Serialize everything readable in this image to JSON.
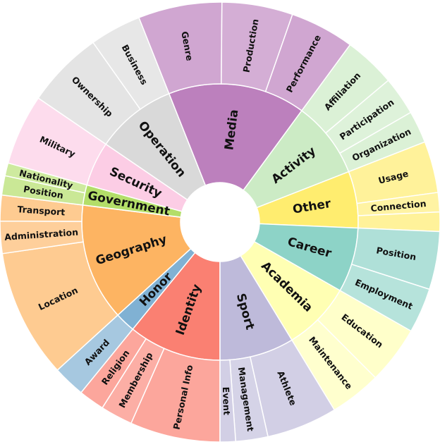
{
  "chart_data": {
    "type": "sunburst",
    "categories": [
      {
        "name": "Identity",
        "color": "#fa8072",
        "children": [
          {
            "name": "Personal Info",
            "value": 7
          },
          {
            "name": "Membership",
            "value": 2.5
          },
          {
            "name": "Religion",
            "value": 2
          }
        ]
      },
      {
        "name": "Honor",
        "color": "#80b1d3",
        "children": [
          {
            "name": "Award",
            "value": 2.5
          }
        ]
      },
      {
        "name": "Geography",
        "color": "#fdb462",
        "children": [
          {
            "name": "Location",
            "value": 10
          },
          {
            "name": "Administration",
            "value": 2.5
          },
          {
            "name": "Transport",
            "value": 2
          }
        ]
      },
      {
        "name": "Government",
        "color": "#b3de69",
        "children": [
          {
            "name": "Position",
            "value": 1.5
          },
          {
            "name": "Nationality",
            "value": 1
          }
        ]
      },
      {
        "name": "Security",
        "color": "#fccde5",
        "children": [
          {
            "name": "Military",
            "value": 5.5
          }
        ]
      },
      {
        "name": "Operation",
        "color": "#d9d9d9",
        "children": [
          {
            "name": "Ownership",
            "value": 6
          },
          {
            "name": "Business",
            "value": 4
          }
        ]
      },
      {
        "name": "Media",
        "color": "#bc80bd",
        "children": [
          {
            "name": "Genre",
            "value": 6.5
          },
          {
            "name": "Production",
            "value": 5.5
          },
          {
            "name": "Performance",
            "value": 5
          }
        ]
      },
      {
        "name": "Activity",
        "color": "#ccebc5",
        "children": [
          {
            "name": "Affiliation",
            "value": 4
          },
          {
            "name": "Participation",
            "value": 3
          },
          {
            "name": "Organization",
            "value": 2.5
          }
        ]
      },
      {
        "name": "Other",
        "color": "#ffed6f",
        "children": [
          {
            "name": "Usage",
            "value": 4
          },
          {
            "name": "Connection",
            "value": 1.5
          },
          {
            "name": "",
            "value": 1.5
          }
        ]
      },
      {
        "name": "Career",
        "color": "#8dd3c7",
        "children": [
          {
            "name": "Position",
            "value": 4.5
          },
          {
            "name": "Employment",
            "value": 3.5
          }
        ]
      },
      {
        "name": "Academia",
        "color": "#ffffb3",
        "children": [
          {
            "name": "Education",
            "value": 4.5
          },
          {
            "name": "Maintenance",
            "value": 4
          }
        ]
      },
      {
        "name": "Sport",
        "color": "#bebada",
        "children": [
          {
            "name": "Athlete",
            "value": 5.5
          },
          {
            "name": "Management",
            "value": 2.5
          },
          {
            "name": "Event",
            "value": 1.2
          }
        ]
      }
    ]
  }
}
